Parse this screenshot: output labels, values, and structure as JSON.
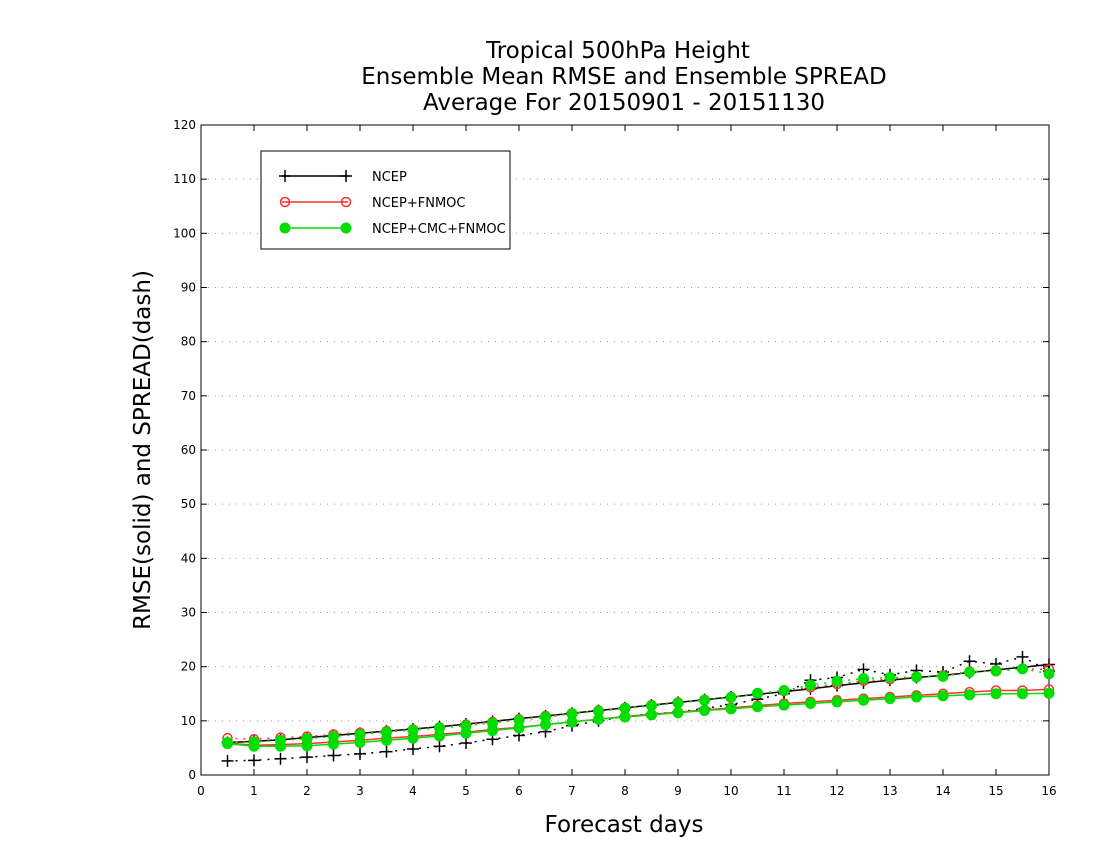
{
  "chart_data": {
    "type": "line",
    "title": [
      "Tropical 500hPa Height",
      "Ensemble Mean RMSE and Ensemble SPREAD",
      "Average For 20150901 - 20151130"
    ],
    "xlabel": "Forecast days",
    "ylabel": "RMSE(solid) and SPREAD(dash)",
    "xlim": [
      0,
      16
    ],
    "ylim": [
      0,
      120
    ],
    "xticks": [
      "0",
      "1",
      "2",
      "3",
      "4",
      "5",
      "6",
      "7",
      "8",
      "9",
      "10",
      "11",
      "12",
      "13",
      "14",
      "15",
      "16"
    ],
    "yticks": [
      "0",
      "10",
      "20",
      "30",
      "40",
      "50",
      "60",
      "70",
      "80",
      "90",
      "100",
      "110",
      "120"
    ],
    "grid": true,
    "legend_position": "top-left",
    "x": [
      0.5,
      1,
      1.5,
      2,
      2.5,
      3,
      3.5,
      4,
      4.5,
      5,
      5.5,
      6,
      6.5,
      7,
      7.5,
      8,
      8.5,
      9,
      9.5,
      10,
      10.5,
      11,
      11.5,
      12,
      12.5,
      13,
      13.5,
      14,
      14.5,
      15,
      15.5,
      16
    ],
    "series": [
      {
        "name": "NCEP",
        "color": "#000000",
        "marker": "plus",
        "rmse": [
          6.0,
          6.2,
          6.5,
          6.9,
          7.3,
          7.7,
          8.1,
          8.5,
          8.9,
          9.4,
          9.9,
          10.4,
          10.9,
          11.4,
          11.9,
          12.4,
          12.9,
          13.4,
          13.9,
          14.4,
          14.9,
          15.4,
          15.9,
          16.5,
          17.0,
          17.5,
          18.0,
          18.4,
          18.9,
          19.4,
          19.9,
          20.4
        ],
        "spread": [
          2.6,
          2.7,
          3.0,
          3.3,
          3.6,
          3.9,
          4.3,
          4.8,
          5.3,
          5.9,
          6.6,
          7.3,
          8.0,
          9.1,
          10.0,
          10.8,
          11.3,
          11.6,
          12.3,
          13.0,
          14.0,
          15.0,
          17.5,
          18.0,
          19.5,
          18.5,
          19.3,
          19.0,
          21.0,
          20.5,
          21.8,
          19.2
        ]
      },
      {
        "name": "NCEP+FNMOC",
        "color": "#ff3030",
        "marker": "open-circle",
        "rmse": [
          5.9,
          5.5,
          5.6,
          5.8,
          6.1,
          6.4,
          6.8,
          7.1,
          7.5,
          7.9,
          8.4,
          8.8,
          9.3,
          9.8,
          10.3,
          10.8,
          11.2,
          11.6,
          12.0,
          12.4,
          12.8,
          13.2,
          13.5,
          13.8,
          14.1,
          14.4,
          14.7,
          15.0,
          15.3,
          15.6,
          15.6,
          15.8
        ],
        "spread": [
          6.8,
          6.6,
          6.9,
          7.1,
          7.5,
          7.8,
          8.1,
          8.4,
          8.8,
          9.3,
          9.8,
          10.3,
          10.9,
          11.4,
          11.9,
          12.4,
          12.9,
          13.4,
          13.9,
          14.4,
          15.0,
          15.5,
          16.2,
          16.8,
          17.4,
          17.7,
          18.1,
          18.4,
          19.1,
          19.3,
          19.6,
          19.5
        ]
      },
      {
        "name": "NCEP+CMC+FNMOC",
        "color": "#00dd00",
        "marker": "filled-circle",
        "rmse": [
          5.8,
          5.3,
          5.3,
          5.4,
          5.7,
          6.0,
          6.4,
          6.8,
          7.2,
          7.7,
          8.2,
          8.7,
          9.3,
          9.8,
          10.3,
          10.7,
          11.1,
          11.5,
          11.9,
          12.2,
          12.6,
          12.9,
          13.2,
          13.5,
          13.8,
          14.1,
          14.4,
          14.6,
          14.8,
          15.0,
          15.0,
          15.1
        ],
        "spread": [
          6.0,
          6.1,
          6.4,
          6.7,
          7.1,
          7.5,
          7.9,
          8.3,
          8.7,
          9.1,
          9.6,
          10.1,
          10.7,
          11.3,
          11.8,
          12.3,
          12.8,
          13.3,
          13.8,
          14.3,
          15.1,
          15.6,
          16.6,
          17.3,
          17.8,
          18.0,
          18.1,
          18.2,
          19.0,
          19.2,
          19.6,
          18.7
        ]
      }
    ]
  }
}
